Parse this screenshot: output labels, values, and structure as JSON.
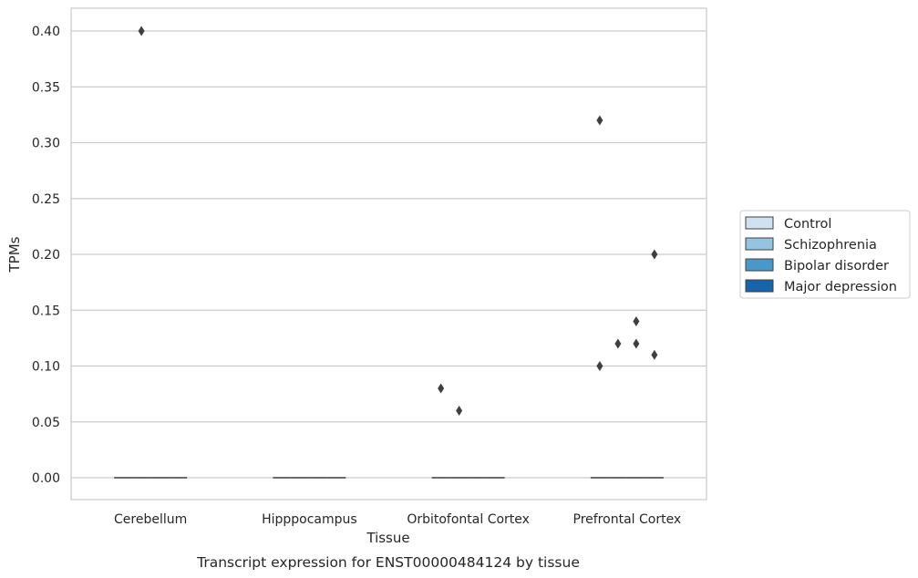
{
  "chart_data": {
    "type": "box",
    "title": "",
    "caption": "Transcript expression for ENST00000484124 by tissue",
    "xlabel": "Tissue",
    "ylabel": "TPMs",
    "ylim": [
      -0.02,
      0.42
    ],
    "yticks": [
      "0.00",
      "0.05",
      "0.10",
      "0.15",
      "0.20",
      "0.25",
      "0.30",
      "0.35",
      "0.40"
    ],
    "grid": true,
    "legend_position": "right",
    "categories": [
      "Cerebellum",
      "Hipppocampus",
      "Orbitofontal Cortex",
      "Prefrontal Cortex"
    ],
    "series": [
      {
        "name": "Control",
        "color": "#d0e1f2"
      },
      {
        "name": "Schizophrenia",
        "color": "#94c4df"
      },
      {
        "name": "Bipolar disorder",
        "color": "#4a98c9"
      },
      {
        "name": "Major depression",
        "color": "#1764ab"
      }
    ],
    "boxes": [
      {
        "category": "Cerebellum",
        "series": "Control",
        "median": 0.0
      },
      {
        "category": "Cerebellum",
        "series": "Schizophrenia",
        "median": 0.0
      },
      {
        "category": "Cerebellum",
        "series": "Bipolar disorder",
        "median": 0.0
      },
      {
        "category": "Cerebellum",
        "series": "Major depression",
        "median": 0.0
      },
      {
        "category": "Hipppocampus",
        "series": "Control",
        "median": 0.0
      },
      {
        "category": "Hipppocampus",
        "series": "Schizophrenia",
        "median": 0.0
      },
      {
        "category": "Hipppocampus",
        "series": "Bipolar disorder",
        "median": 0.0
      },
      {
        "category": "Hipppocampus",
        "series": "Major depression",
        "median": 0.0
      },
      {
        "category": "Orbitofontal Cortex",
        "series": "Control",
        "median": 0.0
      },
      {
        "category": "Orbitofontal Cortex",
        "series": "Schizophrenia",
        "median": 0.0
      },
      {
        "category": "Orbitofontal Cortex",
        "series": "Bipolar disorder",
        "median": 0.0
      },
      {
        "category": "Orbitofontal Cortex",
        "series": "Major depression",
        "median": 0.0
      },
      {
        "category": "Prefrontal Cortex",
        "series": "Control",
        "median": 0.0
      },
      {
        "category": "Prefrontal Cortex",
        "series": "Schizophrenia",
        "median": 0.0
      },
      {
        "category": "Prefrontal Cortex",
        "series": "Bipolar disorder",
        "median": 0.0
      },
      {
        "category": "Prefrontal Cortex",
        "series": "Major depression",
        "median": 0.0
      }
    ],
    "outliers": [
      {
        "category": "Cerebellum",
        "series": "Schizophrenia",
        "value": 0.4
      },
      {
        "category": "Orbitofontal Cortex",
        "series": "Control",
        "value": 0.08
      },
      {
        "category": "Orbitofontal Cortex",
        "series": "Schizophrenia",
        "value": 0.06
      },
      {
        "category": "Prefrontal Cortex",
        "series": "Control",
        "value": 0.32
      },
      {
        "category": "Prefrontal Cortex",
        "series": "Control",
        "value": 0.1
      },
      {
        "category": "Prefrontal Cortex",
        "series": "Schizophrenia",
        "value": 0.12
      },
      {
        "category": "Prefrontal Cortex",
        "series": "Bipolar disorder",
        "value": 0.14
      },
      {
        "category": "Prefrontal Cortex",
        "series": "Bipolar disorder",
        "value": 0.12
      },
      {
        "category": "Prefrontal Cortex",
        "series": "Major depression",
        "value": 0.2
      },
      {
        "category": "Prefrontal Cortex",
        "series": "Major depression",
        "value": 0.11
      }
    ]
  }
}
